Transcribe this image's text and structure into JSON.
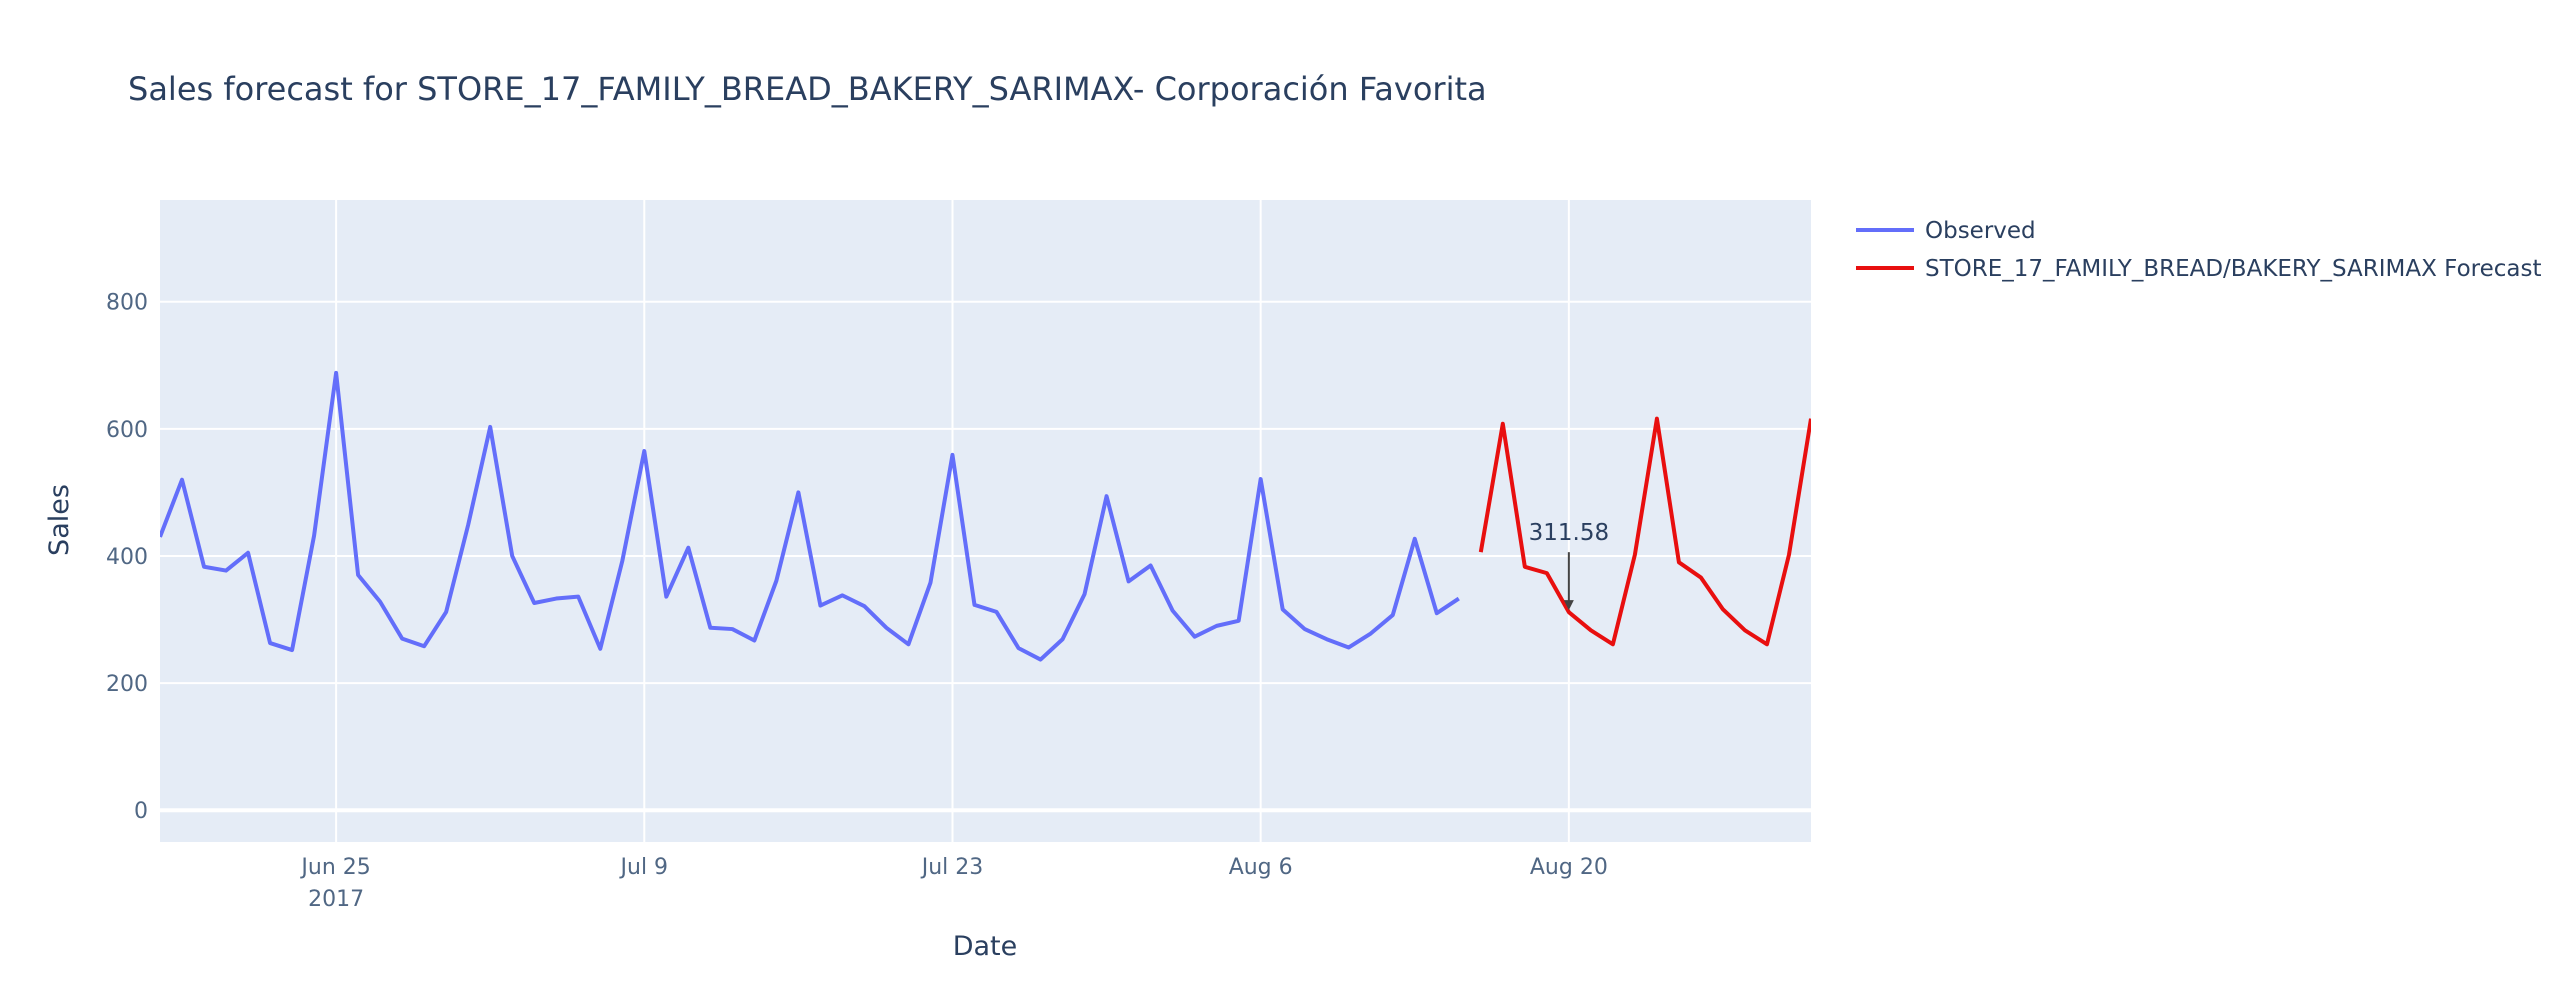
{
  "chart_data": {
    "type": "line",
    "title": "Sales forecast for STORE_17_FAMILY_BREAD_BAKERY_SARIMAX- Corporación Favorita",
    "xlabel": "Date",
    "ylabel": "Sales",
    "x_range": [
      "2017-06-17",
      "2017-08-31"
    ],
    "ylim": [
      -50,
      960
    ],
    "y_ticks": [
      0,
      200,
      400,
      600,
      800
    ],
    "x_ticks": [
      {
        "date": "2017-06-25",
        "label": "Jun 25",
        "sublabel": "2017"
      },
      {
        "date": "2017-07-09",
        "label": "Jul 9",
        "sublabel": ""
      },
      {
        "date": "2017-07-23",
        "label": "Jul 23",
        "sublabel": ""
      },
      {
        "date": "2017-08-06",
        "label": "Aug 6",
        "sublabel": ""
      },
      {
        "date": "2017-08-20",
        "label": "Aug 20",
        "sublabel": ""
      }
    ],
    "grid": true,
    "legend_position": "top-right",
    "series": [
      {
        "name": "Observed",
        "color": "#636efa",
        "start_date": "2017-06-17",
        "values": [
          430,
          520,
          383,
          377,
          405,
          263,
          252,
          432,
          688,
          370,
          328,
          270,
          258,
          312,
          449,
          603,
          400,
          326,
          333,
          336,
          254,
          392,
          565,
          336,
          413,
          287,
          285,
          267,
          361,
          500,
          322,
          338,
          321,
          287,
          261,
          358,
          559,
          323,
          312,
          255,
          237,
          269,
          340,
          494,
          360,
          385,
          314,
          273,
          290,
          298,
          521,
          316,
          285,
          269,
          256,
          278,
          307,
          427,
          310,
          333
        ]
      },
      {
        "name": "STORE_17_FAMILY_BREAD/BAKERY_SARIMAX Forecast",
        "color": "#e80f0f",
        "start_date": "2017-08-16",
        "values": [
          406,
          608,
          383,
          373,
          311.58,
          283,
          261,
          402,
          616,
          390,
          366,
          316,
          283,
          261,
          402,
          616
        ]
      }
    ],
    "annotation": {
      "date": "2017-08-20",
      "value": 311.58,
      "text": "311.58"
    }
  }
}
